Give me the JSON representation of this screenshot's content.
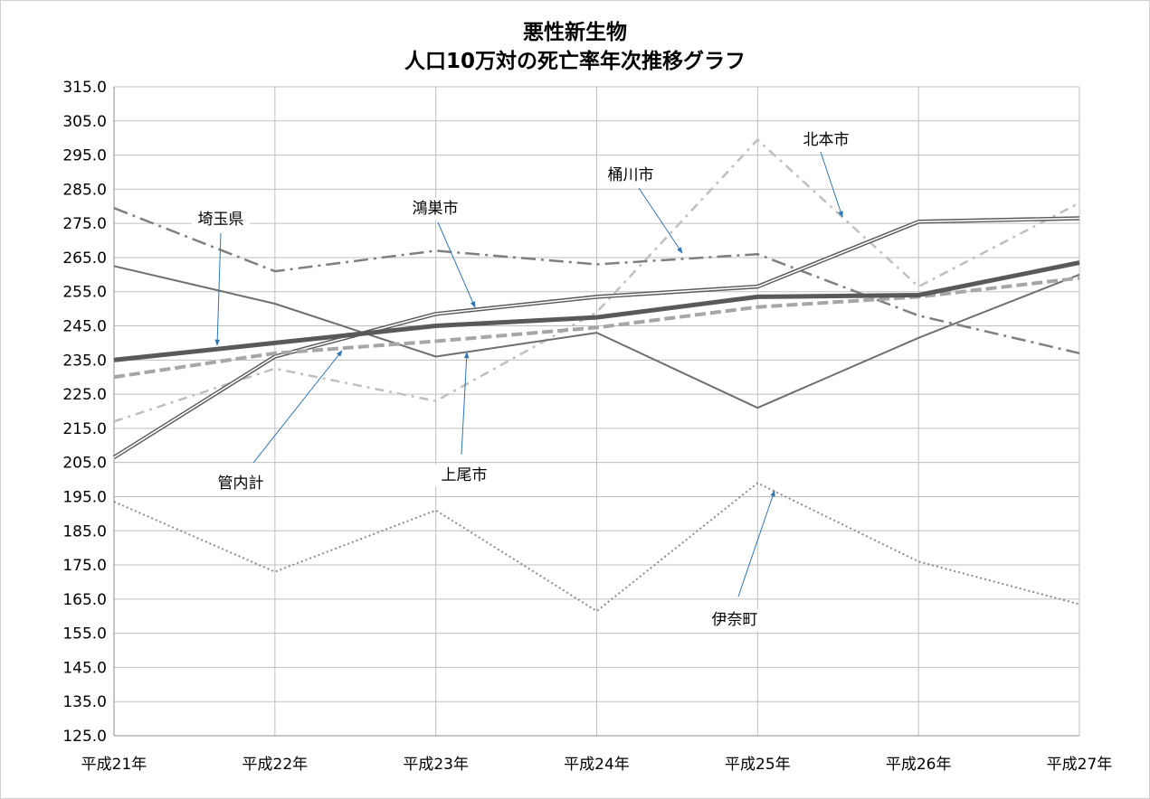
{
  "chart_data": {
    "type": "line",
    "title_line1": "悪性新生物",
    "title_line2": "人口10万対の死亡率年次推移グラフ",
    "categories": [
      "平成21年",
      "平成22年",
      "平成23年",
      "平成24年",
      "平成25年",
      "平成26年",
      "平成27年"
    ],
    "ylim": [
      125.0,
      315.0
    ],
    "yticks": [
      "125.0",
      "135.0",
      "145.0",
      "155.0",
      "165.0",
      "175.0",
      "185.0",
      "195.0",
      "205.0",
      "215.0",
      "225.0",
      "235.0",
      "245.0",
      "255.0",
      "265.0",
      "275.0",
      "285.0",
      "295.0",
      "305.0",
      "315.0"
    ],
    "grid": true,
    "series": [
      {
        "name": "埼玉県",
        "values": [
          235.0,
          240.0,
          245.0,
          247.5,
          253.5,
          254.0,
          263.5
        ],
        "color": "#595959",
        "style": "thick"
      },
      {
        "name": "管内計",
        "values": [
          230.0,
          237.0,
          240.5,
          244.5,
          250.5,
          253.5,
          259.0
        ],
        "color": "#a6a6a6",
        "style": "dashed"
      },
      {
        "name": "鴻巣市",
        "values": [
          206.5,
          236.0,
          248.5,
          253.5,
          256.5,
          275.5,
          276.5
        ],
        "color": "#595959",
        "style": "double"
      },
      {
        "name": "上尾市",
        "values": [
          262.5,
          251.5,
          236.0,
          243.0,
          221.0,
          241.5,
          260.0
        ],
        "color": "#6f6f6f",
        "style": "solid"
      },
      {
        "name": "桶川市",
        "values": [
          279.5,
          261.0,
          267.0,
          263.0,
          266.0,
          248.0,
          237.0
        ],
        "color": "#7f7f7f",
        "style": "dashdot"
      },
      {
        "name": "北本市",
        "values": [
          217.0,
          232.5,
          223.0,
          249.0,
          299.5,
          256.5,
          281.0
        ],
        "color": "#bfbfbf",
        "style": "dashdot2"
      },
      {
        "name": "伊奈町",
        "values": [
          193.5,
          173.0,
          191.0,
          161.5,
          199.0,
          176.0,
          163.5
        ],
        "color": "#8c8c8c",
        "style": "dotted"
      }
    ],
    "annotations": [
      {
        "text": "埼玉県",
        "series": "埼玉県"
      },
      {
        "text": "管内計",
        "series": "管内計"
      },
      {
        "text": "鴻巣市",
        "series": "鴻巣市"
      },
      {
        "text": "上尾市",
        "series": "上尾市"
      },
      {
        "text": "桶川市",
        "series": "桶川市"
      },
      {
        "text": "北本市",
        "series": "北本市"
      },
      {
        "text": "伊奈町",
        "series": "伊奈町"
      }
    ],
    "callout_arrow_color": "#2e75b6"
  }
}
